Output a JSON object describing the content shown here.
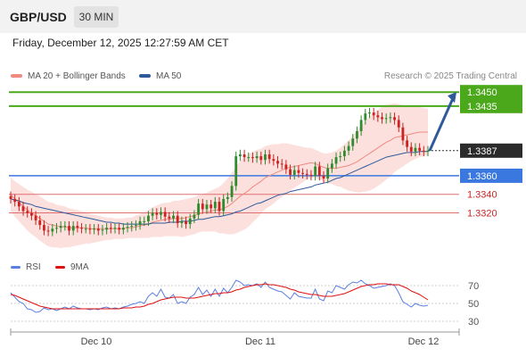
{
  "header": {
    "symbol": "GBP/USD",
    "timeframe": "30 MIN"
  },
  "timestamp": "Friday, December 12, 2025 12:27:59 AM CET",
  "legend": [
    {
      "label": "MA 20 + Bollinger Bands",
      "color": "#f08a80"
    },
    {
      "label": "MA 50",
      "color": "#2e5a9c"
    }
  ],
  "research": "Research © 2025 Trading Central",
  "rsi_legend": [
    {
      "label": "RSI",
      "color": "#5b7fe0"
    },
    {
      "label": "9MA",
      "color": "#e01010"
    }
  ],
  "colors": {
    "resistance": "#4aa81a",
    "support": "#3a78e0",
    "support_weak": "#e07070",
    "bull": "#2e8b2e",
    "bear": "#cc2222",
    "arrow": "#2e5a9c",
    "band": "#fbd6d2"
  },
  "chart_data": [
    {
      "type": "candlestick",
      "title": "",
      "x_ticks": [
        "Dec 10",
        "Dec 11",
        "Dec 12"
      ],
      "ylim": [
        1.3285,
        1.3455
      ],
      "levels": [
        {
          "label": "1.3450",
          "value": 1.345,
          "kind": "resistance"
        },
        {
          "label": "1.3435",
          "value": 1.3435,
          "kind": "resistance"
        },
        {
          "label": "1.3387",
          "value": 1.3387,
          "kind": "current"
        },
        {
          "label": "1.3360",
          "value": 1.336,
          "kind": "support"
        },
        {
          "label": "1.3340",
          "value": 1.334,
          "kind": "support_weak"
        },
        {
          "label": "1.3320",
          "value": 1.332,
          "kind": "support_weak"
        }
      ],
      "projection": {
        "from": 1.3387,
        "to": 1.345
      },
      "close": [
        1.3335,
        1.3332,
        1.3327,
        1.3322,
        1.332,
        1.3317,
        1.3312,
        1.3307,
        1.3301,
        1.33,
        1.3303,
        1.3304,
        1.3306,
        1.3306,
        1.3301,
        1.3306,
        1.3304,
        1.3303,
        1.3303,
        1.3302,
        1.3303,
        1.3301,
        1.3302,
        1.3304,
        1.3303,
        1.3304,
        1.3302,
        1.3304,
        1.3305,
        1.3306,
        1.3307,
        1.3311,
        1.3311,
        1.3317,
        1.332,
        1.3318,
        1.3321,
        1.3316,
        1.3314,
        1.3317,
        1.3309,
        1.3311,
        1.3308,
        1.3314,
        1.3318,
        1.333,
        1.3324,
        1.3329,
        1.3325,
        1.3332,
        1.3322,
        1.3335,
        1.3337,
        1.3349,
        1.3381,
        1.3383,
        1.338,
        1.338,
        1.3379,
        1.3381,
        1.3377,
        1.3383,
        1.3378,
        1.3376,
        1.3373,
        1.3372,
        1.3367,
        1.3361,
        1.3366,
        1.3363,
        1.3362,
        1.3361,
        1.336,
        1.337,
        1.336,
        1.3357,
        1.3368,
        1.3373,
        1.338,
        1.3381,
        1.3387,
        1.3392,
        1.34,
        1.3408,
        1.342,
        1.3427,
        1.3428,
        1.3425,
        1.3423,
        1.3421,
        1.3422,
        1.3423,
        1.342,
        1.3412,
        1.3398,
        1.3391,
        1.3386,
        1.339,
        1.3387,
        1.3386,
        1.3387
      ],
      "ma20": [
        1.334,
        1.3335,
        1.3331,
        1.3327,
        1.3323,
        1.332,
        1.3317,
        1.3314,
        1.3311,
        1.3308,
        1.3307,
        1.3306,
        1.3305,
        1.3305,
        1.3304,
        1.3304,
        1.3304,
        1.3304,
        1.3304,
        1.3303,
        1.3303,
        1.3303,
        1.3303,
        1.3303,
        1.3303,
        1.3303,
        1.3303,
        1.3303,
        1.3304,
        1.3304,
        1.3305,
        1.3306,
        1.3307,
        1.3308,
        1.331,
        1.3311,
        1.3312,
        1.3313,
        1.3313,
        1.3314,
        1.3314,
        1.3314,
        1.3315,
        1.3316,
        1.3317,
        1.3319,
        1.332,
        1.3321,
        1.3322,
        1.3323,
        1.3323,
        1.3325,
        1.3327,
        1.333,
        1.3334,
        1.3338,
        1.3341,
        1.3344,
        1.3348,
        1.3351,
        1.3354,
        1.3358,
        1.336,
        1.3362,
        1.3364,
        1.3366,
        1.3368,
        1.3369,
        1.337,
        1.3371,
        1.3372,
        1.3373,
        1.3374,
        1.3373,
        1.3371,
        1.3369,
        1.3368,
        1.3368,
        1.3368,
        1.3369,
        1.337,
        1.3371,
        1.3373,
        1.3375,
        1.3378,
        1.3381,
        1.3384,
        1.3387,
        1.339,
        1.3393,
        1.3396,
        1.3398,
        1.3401,
        1.3402,
        1.3403,
        1.3404,
        1.3405,
        1.3406,
        1.3407,
        1.3407,
        1.3407
      ],
      "ma50": [
        1.3335,
        1.3334,
        1.3333,
        1.3331,
        1.333,
        1.3329,
        1.3327,
        1.3326,
        1.3325,
        1.3324,
        1.3323,
        1.3322,
        1.3321,
        1.332,
        1.3319,
        1.3318,
        1.3317,
        1.3316,
        1.3315,
        1.3314,
        1.3313,
        1.3312,
        1.3311,
        1.331,
        1.331,
        1.3309,
        1.3309,
        1.3308,
        1.3308,
        1.3308,
        1.3308,
        1.3308,
        1.3308,
        1.3308,
        1.3309,
        1.3309,
        1.3309,
        1.3309,
        1.331,
        1.331,
        1.331,
        1.3311,
        1.3311,
        1.3311,
        1.3312,
        1.3313,
        1.3313,
        1.3314,
        1.3315,
        1.3316,
        1.3316,
        1.3317,
        1.3318,
        1.3319,
        1.3321,
        1.3322,
        1.3324,
        1.3326,
        1.3328,
        1.333,
        1.3331,
        1.3333,
        1.3335,
        1.3337,
        1.3339,
        1.334,
        1.3341,
        1.3343,
        1.3344,
        1.3345,
        1.3346,
        1.3347,
        1.3348,
        1.335,
        1.3351,
        1.3352,
        1.3353,
        1.3355,
        1.3357,
        1.3358,
        1.336,
        1.3362,
        1.3364,
        1.3366,
        1.3368,
        1.337,
        1.3372,
        1.3374,
        1.3376,
        1.3378,
        1.338,
        1.3381,
        1.3382,
        1.3383,
        1.3384,
        1.3385,
        1.3385,
        1.3385,
        1.3386,
        1.3386,
        1.3386
      ],
      "band_width": [
        0.0018,
        0.0019,
        0.002,
        0.0021,
        0.0022,
        0.0023,
        0.0023,
        0.0024,
        0.0024,
        0.0024,
        0.0024,
        0.0023,
        0.0023,
        0.0022,
        0.0021,
        0.002,
        0.0019,
        0.0018,
        0.0017,
        0.0016,
        0.0015,
        0.0014,
        0.0013,
        0.0012,
        0.0012,
        0.0011,
        0.0011,
        0.0011,
        0.0011,
        0.0011,
        0.0012,
        0.0013,
        0.0014,
        0.0015,
        0.0016,
        0.0017,
        0.0018,
        0.0018,
        0.0018,
        0.0019,
        0.0019,
        0.002,
        0.002,
        0.002,
        0.002,
        0.002,
        0.002,
        0.0021,
        0.0022,
        0.0023,
        0.0025,
        0.0027,
        0.003,
        0.0033,
        0.0036,
        0.0038,
        0.0039,
        0.0039,
        0.0038,
        0.0037,
        0.0035,
        0.0034,
        0.0033,
        0.0032,
        0.003,
        0.0029,
        0.0027,
        0.0025,
        0.0023,
        0.0021,
        0.0019,
        0.0017,
        0.0016,
        0.0015,
        0.0015,
        0.0015,
        0.0016,
        0.0017,
        0.0019,
        0.0021,
        0.0024,
        0.0027,
        0.003,
        0.0033,
        0.0036,
        0.0038,
        0.004,
        0.0041,
        0.0041,
        0.0041,
        0.004,
        0.0039,
        0.0037,
        0.0035,
        0.0033,
        0.0031,
        0.0029,
        0.0028,
        0.0027,
        0.0026,
        0.0025
      ]
    },
    {
      "type": "line",
      "title": "",
      "ylim": [
        22,
        80
      ],
      "y_ticks": [
        70,
        50,
        30
      ],
      "series": [
        {
          "name": "RSI",
          "values": [
            62,
            57,
            52,
            50,
            44,
            43,
            40,
            41,
            45,
            43,
            44,
            42,
            44,
            46,
            44,
            47,
            45,
            44,
            44,
            43,
            44,
            43,
            45,
            46,
            44,
            45,
            44,
            46,
            47,
            49,
            50,
            52,
            50,
            58,
            62,
            58,
            66,
            57,
            56,
            60,
            50,
            52,
            50,
            57,
            60,
            68,
            60,
            65,
            58,
            66,
            58,
            67,
            62,
            68,
            76,
            74,
            70,
            71,
            70,
            72,
            68,
            74,
            68,
            66,
            64,
            63,
            59,
            55,
            62,
            58,
            57,
            56,
            56,
            66,
            55,
            53,
            64,
            62,
            70,
            68,
            66,
            71,
            74,
            73,
            76,
            72,
            70,
            67,
            68,
            69,
            70,
            72,
            70,
            62,
            52,
            49,
            46,
            50,
            48,
            47,
            48
          ]
        },
        {
          "name": "9MA",
          "values": [
            60,
            59,
            57,
            55,
            53,
            51,
            49,
            47,
            46,
            45,
            44,
            44,
            44,
            44,
            44,
            44,
            44,
            44,
            44,
            44,
            44,
            44,
            44,
            44,
            44,
            44,
            44,
            45,
            45,
            45,
            46,
            46,
            47,
            49,
            50,
            52,
            54,
            55,
            56,
            57,
            57,
            57,
            56,
            56,
            56,
            57,
            58,
            59,
            60,
            61,
            61,
            62,
            62,
            63,
            65,
            66,
            68,
            69,
            70,
            71,
            71,
            72,
            71,
            71,
            70,
            69,
            68,
            66,
            65,
            63,
            62,
            61,
            60,
            60,
            59,
            58,
            58,
            58,
            59,
            60,
            61,
            63,
            65,
            67,
            69,
            70,
            71,
            71,
            72,
            72,
            72,
            71,
            71,
            71,
            69,
            67,
            64,
            62,
            60,
            57,
            54
          ]
        }
      ]
    }
  ]
}
